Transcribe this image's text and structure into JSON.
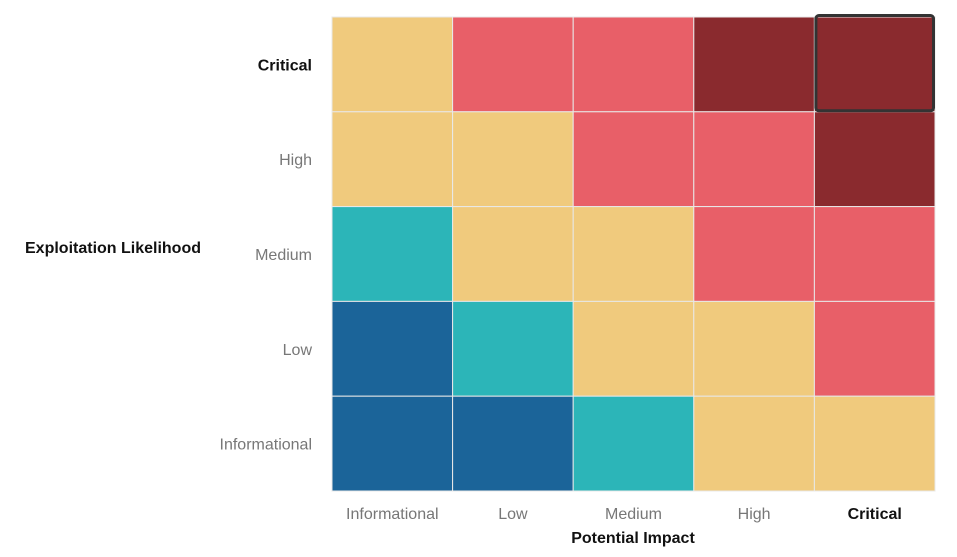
{
  "chart_data": {
    "type": "heatmap",
    "xlabel": "Potential Impact",
    "ylabel": "Exploitation Likelihood",
    "x_categories": [
      "Informational",
      "Low",
      "Medium",
      "High",
      "Critical"
    ],
    "y_categories": [
      "Critical",
      "High",
      "Medium",
      "Low",
      "Informational"
    ],
    "emphasized_x": "Critical",
    "emphasized_y": "Critical",
    "highlighted_cell": {
      "x": "Critical",
      "y": "Critical"
    },
    "levels": [
      "Informational",
      "Low",
      "Medium",
      "High",
      "Critical"
    ],
    "level_colors": {
      "Informational": "#1B6499",
      "Low": "#2CB5B8",
      "Medium": "#F0CA7D",
      "High": "#E85F68",
      "Critical": "#8A2A2E"
    },
    "cells": [
      [
        "Medium",
        "High",
        "High",
        "Critical",
        "Critical"
      ],
      [
        "Medium",
        "Medium",
        "High",
        "High",
        "Critical"
      ],
      [
        "Low",
        "Medium",
        "Medium",
        "High",
        "High"
      ],
      [
        "Informational",
        "Low",
        "Medium",
        "Medium",
        "High"
      ],
      [
        "Informational",
        "Informational",
        "Low",
        "Medium",
        "Medium"
      ]
    ],
    "grid": false,
    "legend": "none",
    "colors": {
      "tick_label": "#777777",
      "emphasis_label": "#111111",
      "cell_border": "#e8e8e8",
      "highlight_border": "#333333"
    }
  }
}
